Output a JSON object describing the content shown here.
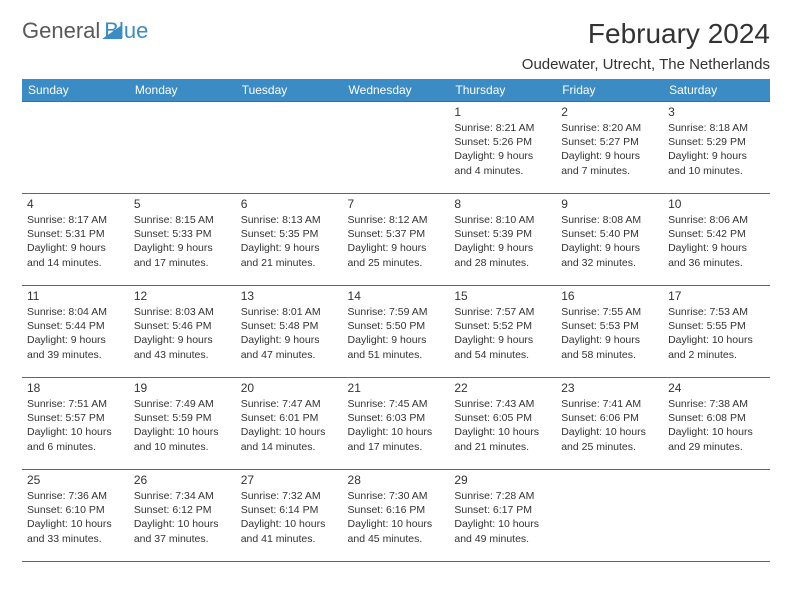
{
  "branding": {
    "text_general": "General",
    "text_blue": "Blue",
    "logo_color": "#3b8bc4"
  },
  "header": {
    "month": "February 2024",
    "location": "Oudewater, Utrecht, The Netherlands"
  },
  "colors": {
    "header_bg": "#3b8bc4",
    "header_text": "#ffffff",
    "border": "#3b6fa3",
    "body_text": "#333333",
    "logo_gray": "#58595b"
  },
  "typography": {
    "month_fontsize": 28,
    "location_fontsize": 15,
    "dayheader_fontsize": 12,
    "daynum_fontsize": 12,
    "dayinfo_fontsize": 10.5
  },
  "calendar": {
    "day_headers": [
      "Sunday",
      "Monday",
      "Tuesday",
      "Wednesday",
      "Thursday",
      "Friday",
      "Saturday"
    ],
    "weeks": [
      [
        null,
        null,
        null,
        null,
        {
          "num": "1",
          "sunrise": "Sunrise: 8:21 AM",
          "sunset": "Sunset: 5:26 PM",
          "daylight": "Daylight: 9 hours and 4 minutes."
        },
        {
          "num": "2",
          "sunrise": "Sunrise: 8:20 AM",
          "sunset": "Sunset: 5:27 PM",
          "daylight": "Daylight: 9 hours and 7 minutes."
        },
        {
          "num": "3",
          "sunrise": "Sunrise: 8:18 AM",
          "sunset": "Sunset: 5:29 PM",
          "daylight": "Daylight: 9 hours and 10 minutes."
        }
      ],
      [
        {
          "num": "4",
          "sunrise": "Sunrise: 8:17 AM",
          "sunset": "Sunset: 5:31 PM",
          "daylight": "Daylight: 9 hours and 14 minutes."
        },
        {
          "num": "5",
          "sunrise": "Sunrise: 8:15 AM",
          "sunset": "Sunset: 5:33 PM",
          "daylight": "Daylight: 9 hours and 17 minutes."
        },
        {
          "num": "6",
          "sunrise": "Sunrise: 8:13 AM",
          "sunset": "Sunset: 5:35 PM",
          "daylight": "Daylight: 9 hours and 21 minutes."
        },
        {
          "num": "7",
          "sunrise": "Sunrise: 8:12 AM",
          "sunset": "Sunset: 5:37 PM",
          "daylight": "Daylight: 9 hours and 25 minutes."
        },
        {
          "num": "8",
          "sunrise": "Sunrise: 8:10 AM",
          "sunset": "Sunset: 5:39 PM",
          "daylight": "Daylight: 9 hours and 28 minutes."
        },
        {
          "num": "9",
          "sunrise": "Sunrise: 8:08 AM",
          "sunset": "Sunset: 5:40 PM",
          "daylight": "Daylight: 9 hours and 32 minutes."
        },
        {
          "num": "10",
          "sunrise": "Sunrise: 8:06 AM",
          "sunset": "Sunset: 5:42 PM",
          "daylight": "Daylight: 9 hours and 36 minutes."
        }
      ],
      [
        {
          "num": "11",
          "sunrise": "Sunrise: 8:04 AM",
          "sunset": "Sunset: 5:44 PM",
          "daylight": "Daylight: 9 hours and 39 minutes."
        },
        {
          "num": "12",
          "sunrise": "Sunrise: 8:03 AM",
          "sunset": "Sunset: 5:46 PM",
          "daylight": "Daylight: 9 hours and 43 minutes."
        },
        {
          "num": "13",
          "sunrise": "Sunrise: 8:01 AM",
          "sunset": "Sunset: 5:48 PM",
          "daylight": "Daylight: 9 hours and 47 minutes."
        },
        {
          "num": "14",
          "sunrise": "Sunrise: 7:59 AM",
          "sunset": "Sunset: 5:50 PM",
          "daylight": "Daylight: 9 hours and 51 minutes."
        },
        {
          "num": "15",
          "sunrise": "Sunrise: 7:57 AM",
          "sunset": "Sunset: 5:52 PM",
          "daylight": "Daylight: 9 hours and 54 minutes."
        },
        {
          "num": "16",
          "sunrise": "Sunrise: 7:55 AM",
          "sunset": "Sunset: 5:53 PM",
          "daylight": "Daylight: 9 hours and 58 minutes."
        },
        {
          "num": "17",
          "sunrise": "Sunrise: 7:53 AM",
          "sunset": "Sunset: 5:55 PM",
          "daylight": "Daylight: 10 hours and 2 minutes."
        }
      ],
      [
        {
          "num": "18",
          "sunrise": "Sunrise: 7:51 AM",
          "sunset": "Sunset: 5:57 PM",
          "daylight": "Daylight: 10 hours and 6 minutes."
        },
        {
          "num": "19",
          "sunrise": "Sunrise: 7:49 AM",
          "sunset": "Sunset: 5:59 PM",
          "daylight": "Daylight: 10 hours and 10 minutes."
        },
        {
          "num": "20",
          "sunrise": "Sunrise: 7:47 AM",
          "sunset": "Sunset: 6:01 PM",
          "daylight": "Daylight: 10 hours and 14 minutes."
        },
        {
          "num": "21",
          "sunrise": "Sunrise: 7:45 AM",
          "sunset": "Sunset: 6:03 PM",
          "daylight": "Daylight: 10 hours and 17 minutes."
        },
        {
          "num": "22",
          "sunrise": "Sunrise: 7:43 AM",
          "sunset": "Sunset: 6:05 PM",
          "daylight": "Daylight: 10 hours and 21 minutes."
        },
        {
          "num": "23",
          "sunrise": "Sunrise: 7:41 AM",
          "sunset": "Sunset: 6:06 PM",
          "daylight": "Daylight: 10 hours and 25 minutes."
        },
        {
          "num": "24",
          "sunrise": "Sunrise: 7:38 AM",
          "sunset": "Sunset: 6:08 PM",
          "daylight": "Daylight: 10 hours and 29 minutes."
        }
      ],
      [
        {
          "num": "25",
          "sunrise": "Sunrise: 7:36 AM",
          "sunset": "Sunset: 6:10 PM",
          "daylight": "Daylight: 10 hours and 33 minutes."
        },
        {
          "num": "26",
          "sunrise": "Sunrise: 7:34 AM",
          "sunset": "Sunset: 6:12 PM",
          "daylight": "Daylight: 10 hours and 37 minutes."
        },
        {
          "num": "27",
          "sunrise": "Sunrise: 7:32 AM",
          "sunset": "Sunset: 6:14 PM",
          "daylight": "Daylight: 10 hours and 41 minutes."
        },
        {
          "num": "28",
          "sunrise": "Sunrise: 7:30 AM",
          "sunset": "Sunset: 6:16 PM",
          "daylight": "Daylight: 10 hours and 45 minutes."
        },
        {
          "num": "29",
          "sunrise": "Sunrise: 7:28 AM",
          "sunset": "Sunset: 6:17 PM",
          "daylight": "Daylight: 10 hours and 49 minutes."
        },
        null,
        null
      ]
    ]
  }
}
